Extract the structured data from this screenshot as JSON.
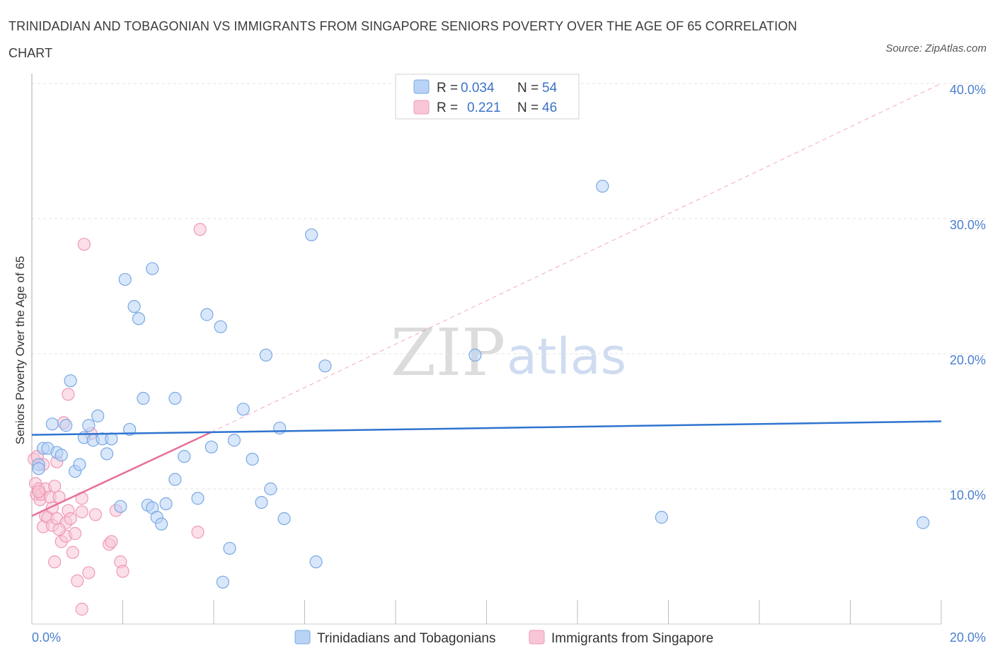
{
  "title": "TRINIDADIAN AND TOBAGONIAN VS IMMIGRANTS FROM SINGAPORE SENIORS POVERTY OVER THE AGE OF 65 CORRELATION CHART",
  "source": "Source: ZipAtlas.com",
  "colors": {
    "blue_fill": "#b8d3f5",
    "blue_stroke": "#7aa9e3",
    "blue_line": "#2f74cf",
    "pink_fill": "#f8c6d6",
    "pink_stroke": "#ef98b6",
    "pink_line": "#e8709a",
    "grid": "#e3e3e3",
    "tick_text": "#4a7fd0"
  },
  "legend_top": {
    "row1": {
      "r_label": "R =",
      "r_value": "0.034",
      "n_label": "N =",
      "n_value": "54"
    },
    "row2": {
      "r_label": "R =",
      "r_value": "0.221",
      "n_label": "N =",
      "n_value": "46"
    }
  },
  "watermark": {
    "zip": "ZIP",
    "atlas": "atlas"
  },
  "chart_data": {
    "type": "scatter",
    "title": "TRINIDADIAN AND TOBAGONIAN VS IMMIGRANTS FROM SINGAPORE SENIORS POVERTY OVER THE AGE OF 65 CORRELATION CHART",
    "xlabel": "",
    "ylabel": "Seniors Poverty Over the Age of 65",
    "xlim": [
      0,
      20
    ],
    "ylim": [
      0,
      40
    ],
    "x_tick_labels": [
      "0.0%",
      "20.0%"
    ],
    "y_ticks": [
      10,
      20,
      30,
      40
    ],
    "y_tick_labels": [
      "10.0%",
      "20.0%",
      "30.0%",
      "40.0%"
    ],
    "grid": true,
    "legend_position": "top-center",
    "series": [
      {
        "name": "Trinidadians and Tobagonians",
        "R": 0.034,
        "N": 54,
        "trend": {
          "x": [
            0,
            20
          ],
          "y": [
            14.0,
            15.0
          ],
          "dashed_extension": false
        },
        "points": [
          [
            0.15,
            11.8
          ],
          [
            0.15,
            11.5
          ],
          [
            0.25,
            13.0
          ],
          [
            0.35,
            13.0
          ],
          [
            0.45,
            14.8
          ],
          [
            0.55,
            12.7
          ],
          [
            0.65,
            12.5
          ],
          [
            0.75,
            14.7
          ],
          [
            0.85,
            18.0
          ],
          [
            0.95,
            11.3
          ],
          [
            1.05,
            11.8
          ],
          [
            1.15,
            13.8
          ],
          [
            1.25,
            14.7
          ],
          [
            1.35,
            13.6
          ],
          [
            1.45,
            15.4
          ],
          [
            1.55,
            13.7
          ],
          [
            1.65,
            12.6
          ],
          [
            1.75,
            13.7
          ],
          [
            1.95,
            8.7
          ],
          [
            2.05,
            25.5
          ],
          [
            2.15,
            14.4
          ],
          [
            2.25,
            23.5
          ],
          [
            2.35,
            22.6
          ],
          [
            2.45,
            16.7
          ],
          [
            2.55,
            8.8
          ],
          [
            2.65,
            26.3
          ],
          [
            2.65,
            8.6
          ],
          [
            2.75,
            7.9
          ],
          [
            2.85,
            7.4
          ],
          [
            2.95,
            8.9
          ],
          [
            3.15,
            16.7
          ],
          [
            3.15,
            10.7
          ],
          [
            3.35,
            12.4
          ],
          [
            3.65,
            9.3
          ],
          [
            3.85,
            22.9
          ],
          [
            3.95,
            13.1
          ],
          [
            4.15,
            22.0
          ],
          [
            4.35,
            5.6
          ],
          [
            4.45,
            13.6
          ],
          [
            4.65,
            15.9
          ],
          [
            4.85,
            12.2
          ],
          [
            5.05,
            9.0
          ],
          [
            5.15,
            19.9
          ],
          [
            5.25,
            10.0
          ],
          [
            5.45,
            14.5
          ],
          [
            5.55,
            7.8
          ],
          [
            6.15,
            28.8
          ],
          [
            6.25,
            4.6
          ],
          [
            6.45,
            19.1
          ],
          [
            4.2,
            3.1
          ],
          [
            9.75,
            19.9
          ],
          [
            12.55,
            32.4
          ],
          [
            13.85,
            7.9
          ],
          [
            19.6,
            7.5
          ]
        ]
      },
      {
        "name": "Immigrants from Singapore",
        "R": 0.221,
        "N": 46,
        "trend": {
          "x": [
            0,
            3.95
          ],
          "y": [
            8.0,
            14.2
          ],
          "dashed_extension": {
            "x": [
              3.95,
              20
            ],
            "y": [
              14.2,
              40
            ]
          }
        },
        "points": [
          [
            0.05,
            12.2
          ],
          [
            0.08,
            10.4
          ],
          [
            0.1,
            9.6
          ],
          [
            0.12,
            12.4
          ],
          [
            0.15,
            10.0
          ],
          [
            0.18,
            9.2
          ],
          [
            0.2,
            9.6
          ],
          [
            0.25,
            7.2
          ],
          [
            0.3,
            8.0
          ],
          [
            0.3,
            10.0
          ],
          [
            0.35,
            7.9
          ],
          [
            0.4,
            9.4
          ],
          [
            0.45,
            7.3
          ],
          [
            0.45,
            8.6
          ],
          [
            0.5,
            4.6
          ],
          [
            0.55,
            12.0
          ],
          [
            0.55,
            7.8
          ],
          [
            0.6,
            9.4
          ],
          [
            0.65,
            6.1
          ],
          [
            0.7,
            14.9
          ],
          [
            0.75,
            6.5
          ],
          [
            0.75,
            7.5
          ],
          [
            0.8,
            17.0
          ],
          [
            0.8,
            8.4
          ],
          [
            0.85,
            7.8
          ],
          [
            0.9,
            5.3
          ],
          [
            0.95,
            6.7
          ],
          [
            1.0,
            3.2
          ],
          [
            1.1,
            8.3
          ],
          [
            1.1,
            9.3
          ],
          [
            1.15,
            28.1
          ],
          [
            1.25,
            3.8
          ],
          [
            1.3,
            14.1
          ],
          [
            1.4,
            8.1
          ],
          [
            1.7,
            5.9
          ],
          [
            1.75,
            6.1
          ],
          [
            1.85,
            8.4
          ],
          [
            1.95,
            4.6
          ],
          [
            2.0,
            3.9
          ],
          [
            3.65,
            6.8
          ],
          [
            3.7,
            29.2
          ],
          [
            1.1,
            1.1
          ],
          [
            0.5,
            10.2
          ],
          [
            0.25,
            11.8
          ],
          [
            0.6,
            7.0
          ],
          [
            0.15,
            9.8
          ]
        ]
      }
    ]
  },
  "bottom_legend": {
    "item1": "Trinidadians and Tobagonians",
    "item2": "Immigrants from Singapore"
  }
}
